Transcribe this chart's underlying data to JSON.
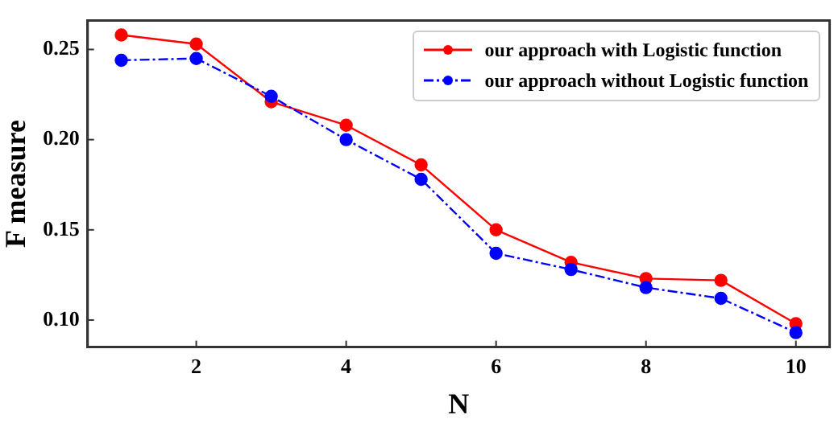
{
  "chart_data": {
    "type": "line",
    "xlabel": "N",
    "ylabel": "F measure",
    "x": [
      1,
      2,
      3,
      4,
      5,
      6,
      7,
      8,
      9,
      10
    ],
    "series": [
      {
        "name": "our approach with Logistic function",
        "color": "#ff0000",
        "line_style": "solid",
        "values": [
          0.258,
          0.253,
          0.221,
          0.208,
          0.186,
          0.15,
          0.132,
          0.123,
          0.122,
          0.098
        ]
      },
      {
        "name": "our approach without Logistic function",
        "color": "#0000ff",
        "line_style": "dashdot",
        "values": [
          0.244,
          0.245,
          0.224,
          0.2,
          0.178,
          0.137,
          0.128,
          0.118,
          0.112,
          0.093
        ]
      }
    ],
    "xlim": [
      0.55,
      10.45
    ],
    "xticks": [
      2,
      4,
      6,
      8,
      10
    ],
    "ylim": [
      0.085,
      0.266
    ],
    "yticks": [
      {
        "value": 0.1,
        "label": "0.10"
      },
      {
        "value": 0.15,
        "label": "0.15"
      },
      {
        "value": 0.2,
        "label": "0.20"
      },
      {
        "value": 0.25,
        "label": "0.25"
      }
    ],
    "grid": false,
    "legend": "top right",
    "marker": "circle"
  }
}
